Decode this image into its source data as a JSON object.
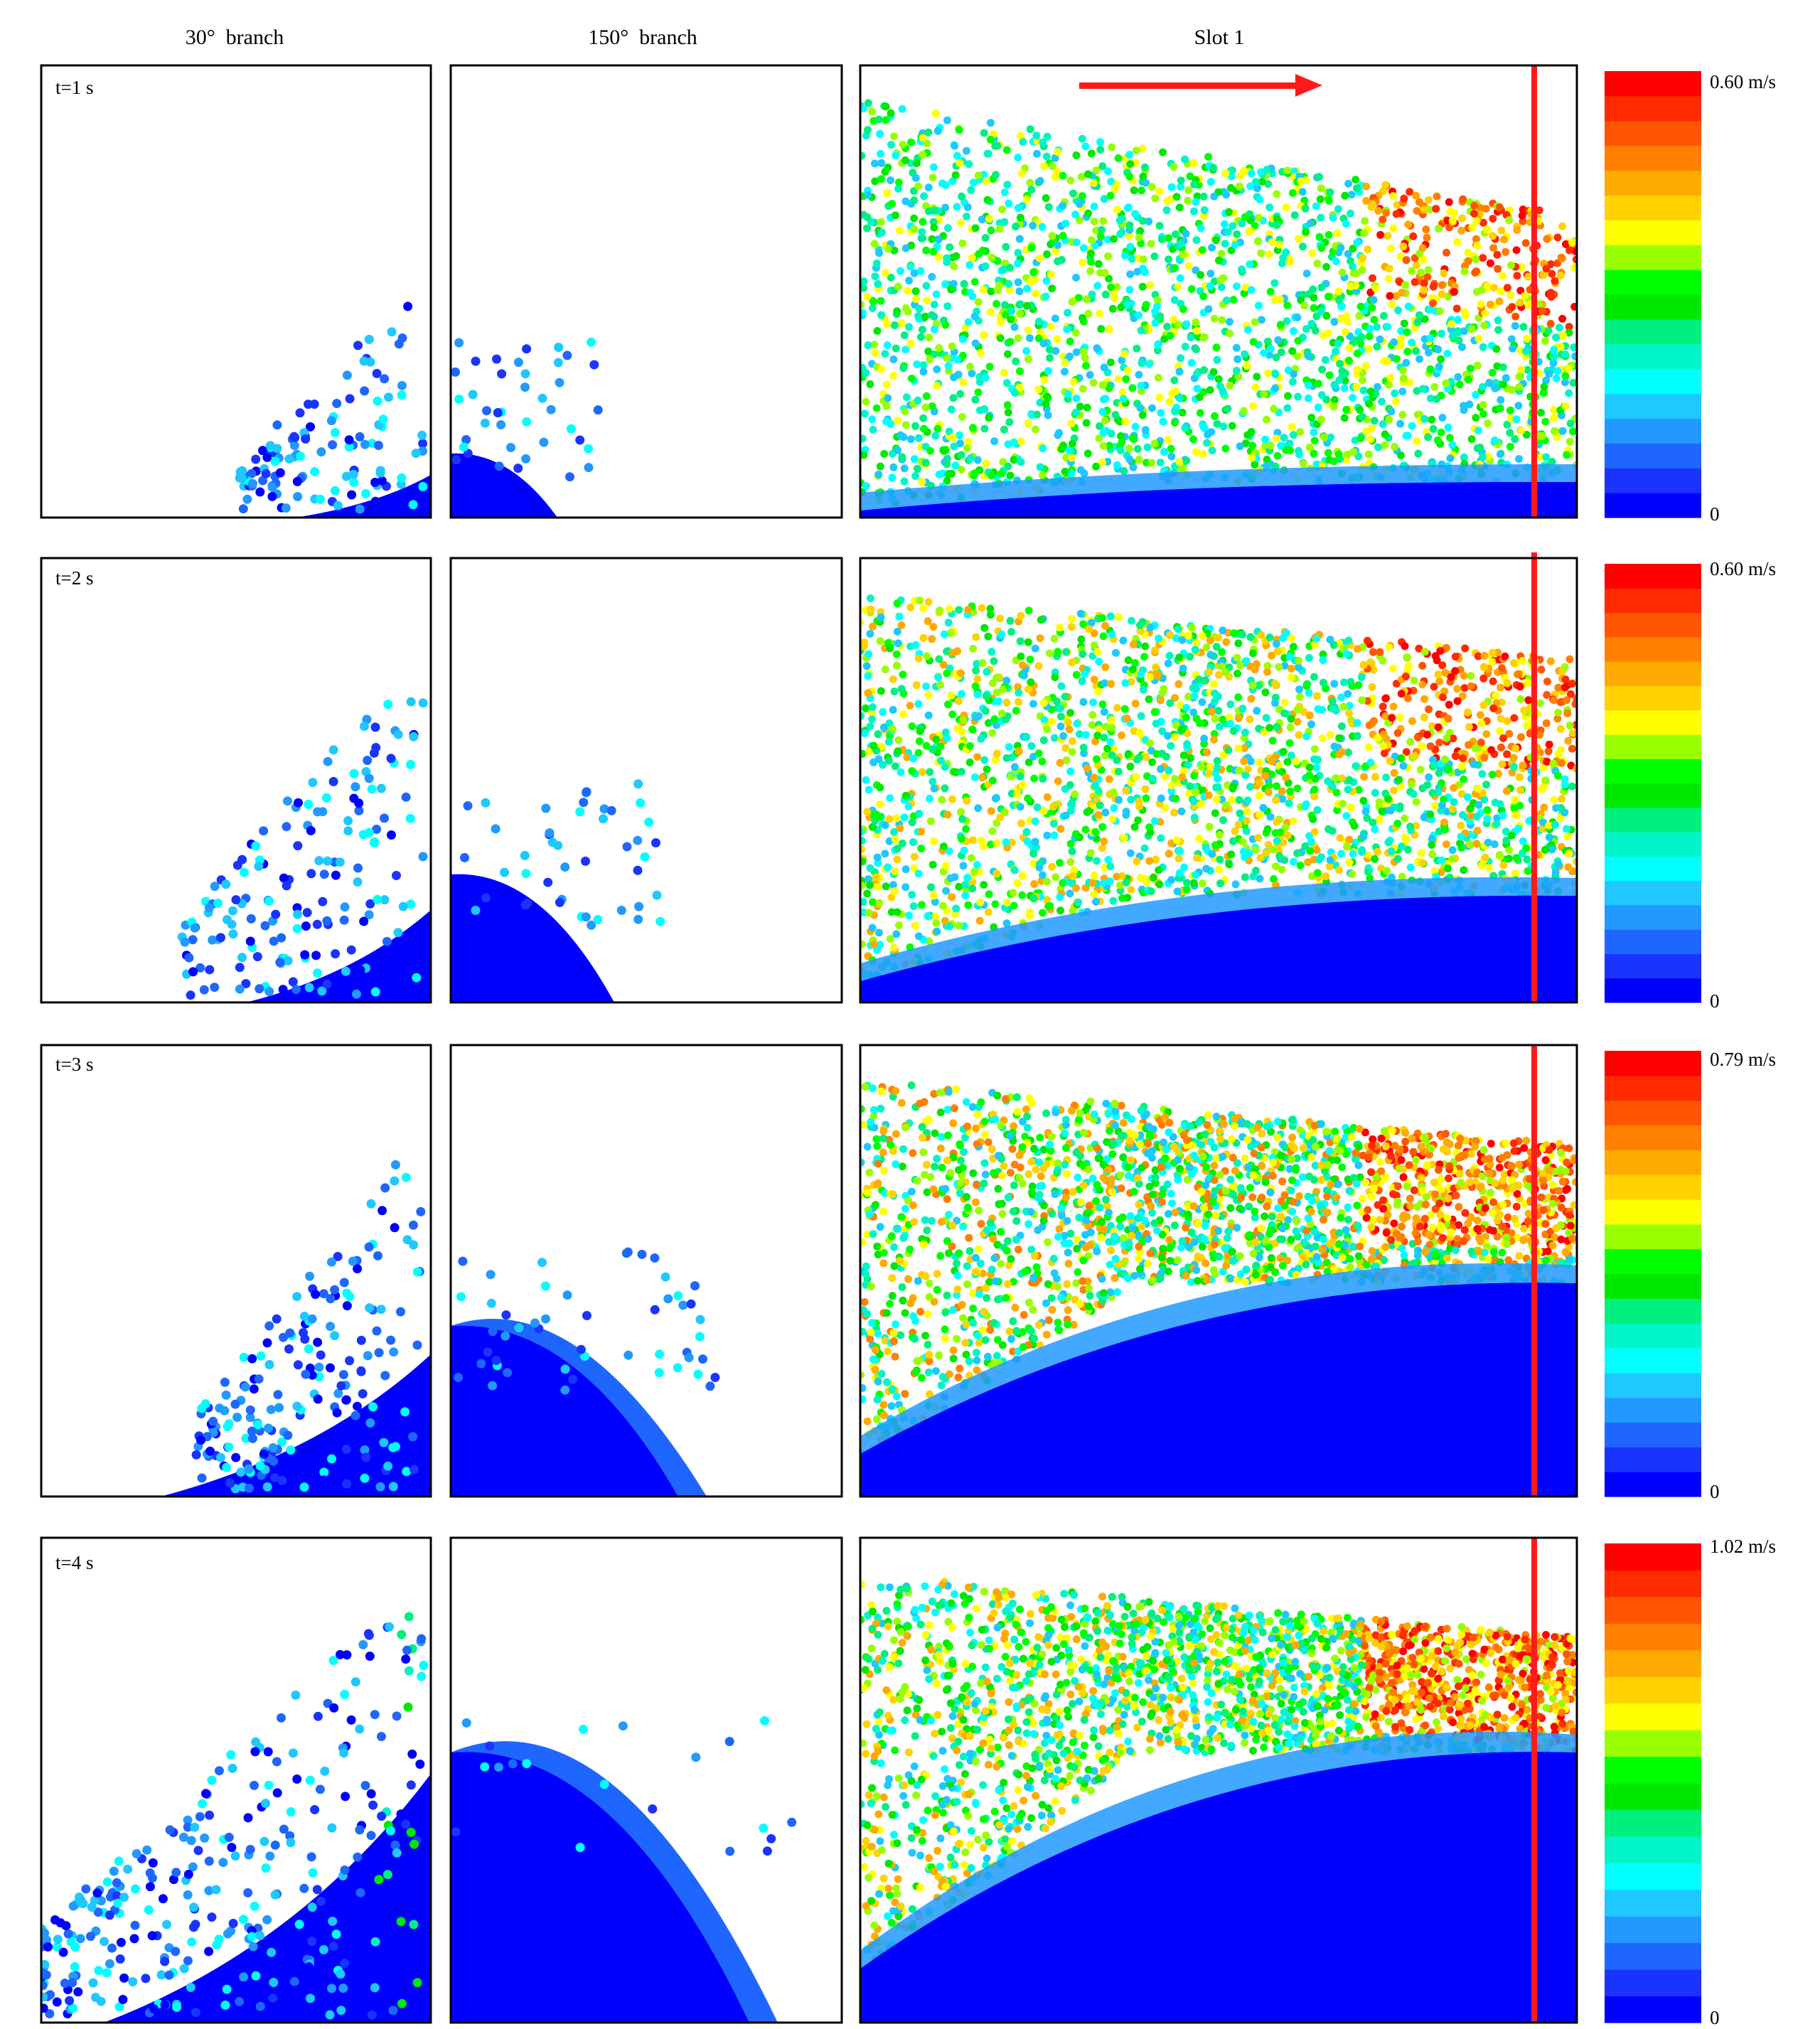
{
  "column_titles": {
    "branch30": "30°  branch",
    "branch150": "150°  branch",
    "slot": "Slot 1"
  },
  "rows": [
    {
      "time_label": "t=1 s",
      "scale_max": "0.60 m/s",
      "scale_min": "0"
    },
    {
      "time_label": "t=2 s",
      "scale_max": "0.60 m/s",
      "scale_min": "0"
    },
    {
      "time_label": "t=3 s",
      "scale_max": "0.79 m/s",
      "scale_min": "0"
    },
    {
      "time_label": "t=4 s",
      "scale_max": "1.02 m/s",
      "scale_min": "0"
    }
  ],
  "colors": {
    "frame": "#000000",
    "flow_arrow": "#ff1a1a",
    "outlet_line": "#ff1a1a",
    "colorbar": [
      "#0000ff",
      "#1a33ff",
      "#1f66ff",
      "#2299ff",
      "#1fc8ff",
      "#00ffff",
      "#00f5c8",
      "#00f080",
      "#00e800",
      "#00ff00",
      "#99ff00",
      "#ffff00",
      "#ffd200",
      "#ffaa00",
      "#ff8000",
      "#ff5500",
      "#ff2a00",
      "#ff0000"
    ]
  }
}
